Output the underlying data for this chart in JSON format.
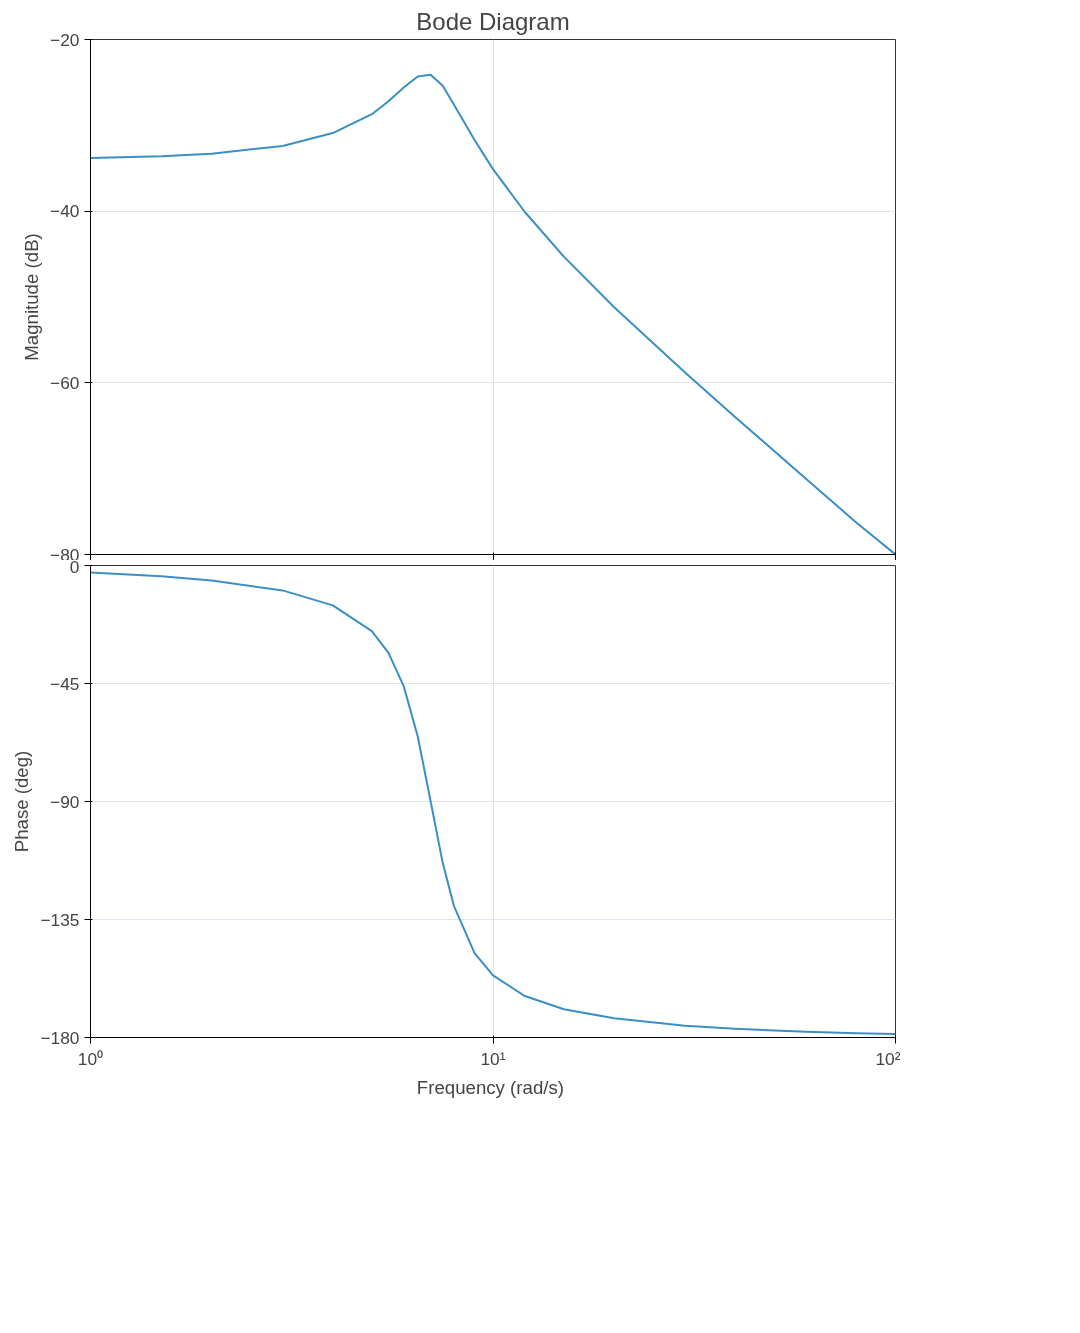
{
  "chart_data": [
    {
      "type": "line",
      "title": "Bode Diagram",
      "ylabel": "Magnitude (dB)",
      "x": [
        1,
        1.5,
        2,
        3,
        4,
        5,
        5.5,
        6,
        6.5,
        7,
        7.5,
        8,
        9,
        10,
        12,
        15,
        20,
        30,
        40,
        60,
        80,
        100
      ],
      "series": [
        {
          "color": "#3a8fc4",
          "values": [
            -33.8,
            -33.6,
            -33.3,
            -32.4,
            -30.9,
            -28.7,
            -27.2,
            -25.6,
            -24.3,
            -24.1,
            -25.4,
            -27.6,
            -31.7,
            -35.1,
            -40.1,
            -45.3,
            -51.2,
            -58.8,
            -64.0,
            -71.2,
            -76.3,
            -80
          ]
        }
      ],
      "log": "x",
      "xlim": [
        1,
        100
      ],
      "ylim": [
        -80,
        -20
      ],
      "xticks": [
        {
          "value": 1,
          "label": null
        },
        {
          "value": 10,
          "label": null
        },
        {
          "value": 100,
          "label": null
        }
      ],
      "yticks": [
        -80,
        -60,
        -40,
        -20
      ],
      "grid": true,
      "tick_labels": "y"
    },
    {
      "type": "line",
      "ylabel": "Phase (deg)",
      "xlabel": "Frequency  (rad/s)",
      "x": [
        1,
        1.5,
        2,
        3,
        4,
        5,
        5.5,
        6,
        6.5,
        7,
        7.5,
        8,
        9,
        10,
        12,
        15,
        20,
        30,
        40,
        60,
        80,
        100
      ],
      "series": [
        {
          "color": "#3a8fc4",
          "values": [
            -2.7,
            -4.1,
            -5.7,
            -9.5,
            -15.2,
            -25.0,
            -33.3,
            -46.0,
            -65.1,
            -90,
            -113.4,
            -129.9,
            -147.8,
            -156.3,
            -164.2,
            -169.2,
            -172.7,
            -175.5,
            -176.7,
            -177.8,
            -178.4,
            -178.7
          ]
        }
      ],
      "log": "x",
      "xlim": [
        1,
        100
      ],
      "ylim": [
        -180,
        0
      ],
      "xticks": [
        {
          "value": 1,
          "label": "10⁰"
        },
        {
          "value": 10,
          "label": "10¹"
        },
        {
          "value": 100,
          "label": "10²"
        }
      ],
      "yticks": [
        -180,
        -135,
        -90,
        -45,
        0
      ],
      "grid": true
    }
  ]
}
